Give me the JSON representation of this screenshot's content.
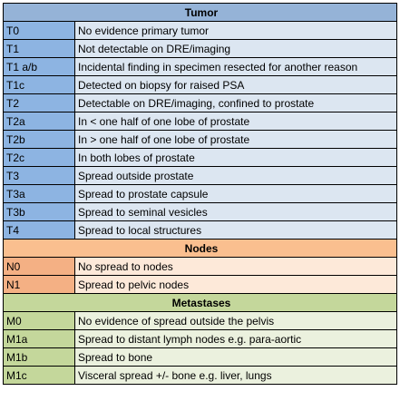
{
  "tumor": {
    "heading": "Tumor",
    "rows": [
      {
        "code": "T0",
        "desc": "No evidence primary tumor"
      },
      {
        "code": "T1",
        "desc": "Not detectable on DRE/imaging"
      },
      {
        "code": "T1 a/b",
        "desc": "Incidental finding in specimen resected for another reason"
      },
      {
        "code": "T1c",
        "desc": "Detected on biopsy for raised PSA"
      },
      {
        "code": "T2",
        "desc": "Detectable on DRE/imaging, confined to prostate"
      },
      {
        "code": "T2a",
        "desc": "In < one half of one lobe of prostate"
      },
      {
        "code": "T2b",
        "desc": "In > one half of one lobe of prostate"
      },
      {
        "code": "T2c",
        "desc": "In both lobes of prostate"
      },
      {
        "code": "T3",
        "desc": "Spread outside prostate"
      },
      {
        "code": "T3a",
        "desc": "Spread to prostate capsule"
      },
      {
        "code": "T3b",
        "desc": "Spread to seminal vesicles"
      },
      {
        "code": "T4",
        "desc": "Spread to local structures"
      }
    ]
  },
  "nodes": {
    "heading": "Nodes",
    "rows": [
      {
        "code": "N0",
        "desc": "No spread to nodes"
      },
      {
        "code": "N1",
        "desc": "Spread to pelvic nodes"
      }
    ]
  },
  "metastases": {
    "heading": "Metastases",
    "rows": [
      {
        "code": "M0",
        "desc": "No evidence of spread outside the pelvis"
      },
      {
        "code": "M1a",
        "desc": "Spread to distant lymph nodes e.g. para-aortic"
      },
      {
        "code": "M1b",
        "desc": "Spread to bone"
      },
      {
        "code": "M1c",
        "desc": "Visceral spread +/- bone e.g. liver, lungs"
      }
    ]
  },
  "colors": {
    "tumor_header": "#95b3d7",
    "tumor_code": "#8db4e2",
    "tumor_desc": "#dce6f1",
    "nodes_header": "#fabf8f",
    "nodes_code": "#f4b084",
    "nodes_desc": "#fde9d9",
    "mets_header": "#c4d79b",
    "mets_code": "#c4d79b",
    "mets_desc": "#ebf1de"
  }
}
